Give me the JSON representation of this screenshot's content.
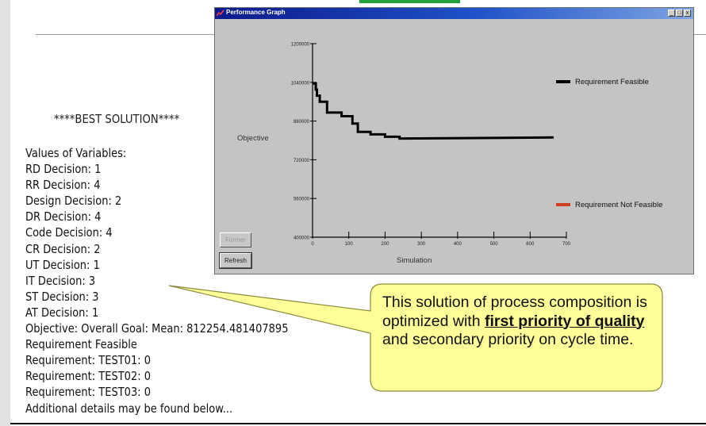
{
  "slide": {
    "best_solution_title": "****BEST SOLUTION****",
    "solution_lines": [
      "Values of Variables:",
      "RD Decision: 1",
      "RR Decision: 4",
      "Design Decision: 2",
      "DR Decision: 4",
      "Code Decision: 4",
      "CR Decision: 2",
      "UT Decision: 1",
      "IT Decision: 3",
      "ST Decision: 3",
      "AT Decision: 1",
      "Objective: Overall Goal: Mean: 812254.481407895",
      "Requirement Feasible",
      "Requirement: TEST01: 0",
      "Requirement: TEST02: 0",
      "Requirement: TEST03: 0",
      "Additional details may be found below..."
    ],
    "callout": {
      "text_before": "This solution of process composition is optimized with ",
      "emphasis": "first priority of quality",
      "text_after": " and secondary priority on cycle time.",
      "fill_color": "#ffff99",
      "border_color": "#8a8a40"
    }
  },
  "window": {
    "title": "Performance Graph",
    "buttons": {
      "minimize": "_",
      "maximize": "□",
      "close": "x"
    },
    "former_button": "Former",
    "refresh_button": "Refresh"
  },
  "chart_data": {
    "type": "line",
    "xlabel": "Simulation",
    "ylabel": "Objective",
    "xlim": [
      0,
      700
    ],
    "ylim": [
      400000,
      1200000
    ],
    "x_ticks": [
      0,
      100,
      200,
      300,
      400,
      500,
      600,
      700
    ],
    "y_ticks": [
      400000,
      560000,
      720000,
      880000,
      1040000,
      1200000
    ],
    "legend": [
      {
        "name": "Requirement Feasible",
        "color": "#000000"
      },
      {
        "name": "Requirement Not Feasible",
        "color": "#d04020"
      }
    ],
    "series": [
      {
        "name": "Requirement Feasible",
        "color": "#000000",
        "points": [
          [
            0,
            1035000
          ],
          [
            9,
            1035000
          ],
          [
            9,
            1010000
          ],
          [
            12,
            1010000
          ],
          [
            12,
            985000
          ],
          [
            20,
            985000
          ],
          [
            20,
            960000
          ],
          [
            40,
            960000
          ],
          [
            40,
            915000
          ],
          [
            80,
            915000
          ],
          [
            80,
            900000
          ],
          [
            110,
            900000
          ],
          [
            110,
            870000
          ],
          [
            125,
            870000
          ],
          [
            125,
            835000
          ],
          [
            160,
            835000
          ],
          [
            160,
            825000
          ],
          [
            200,
            825000
          ],
          [
            200,
            815000
          ],
          [
            240,
            815000
          ],
          [
            240,
            808000
          ],
          [
            665,
            812000
          ]
        ]
      }
    ]
  }
}
